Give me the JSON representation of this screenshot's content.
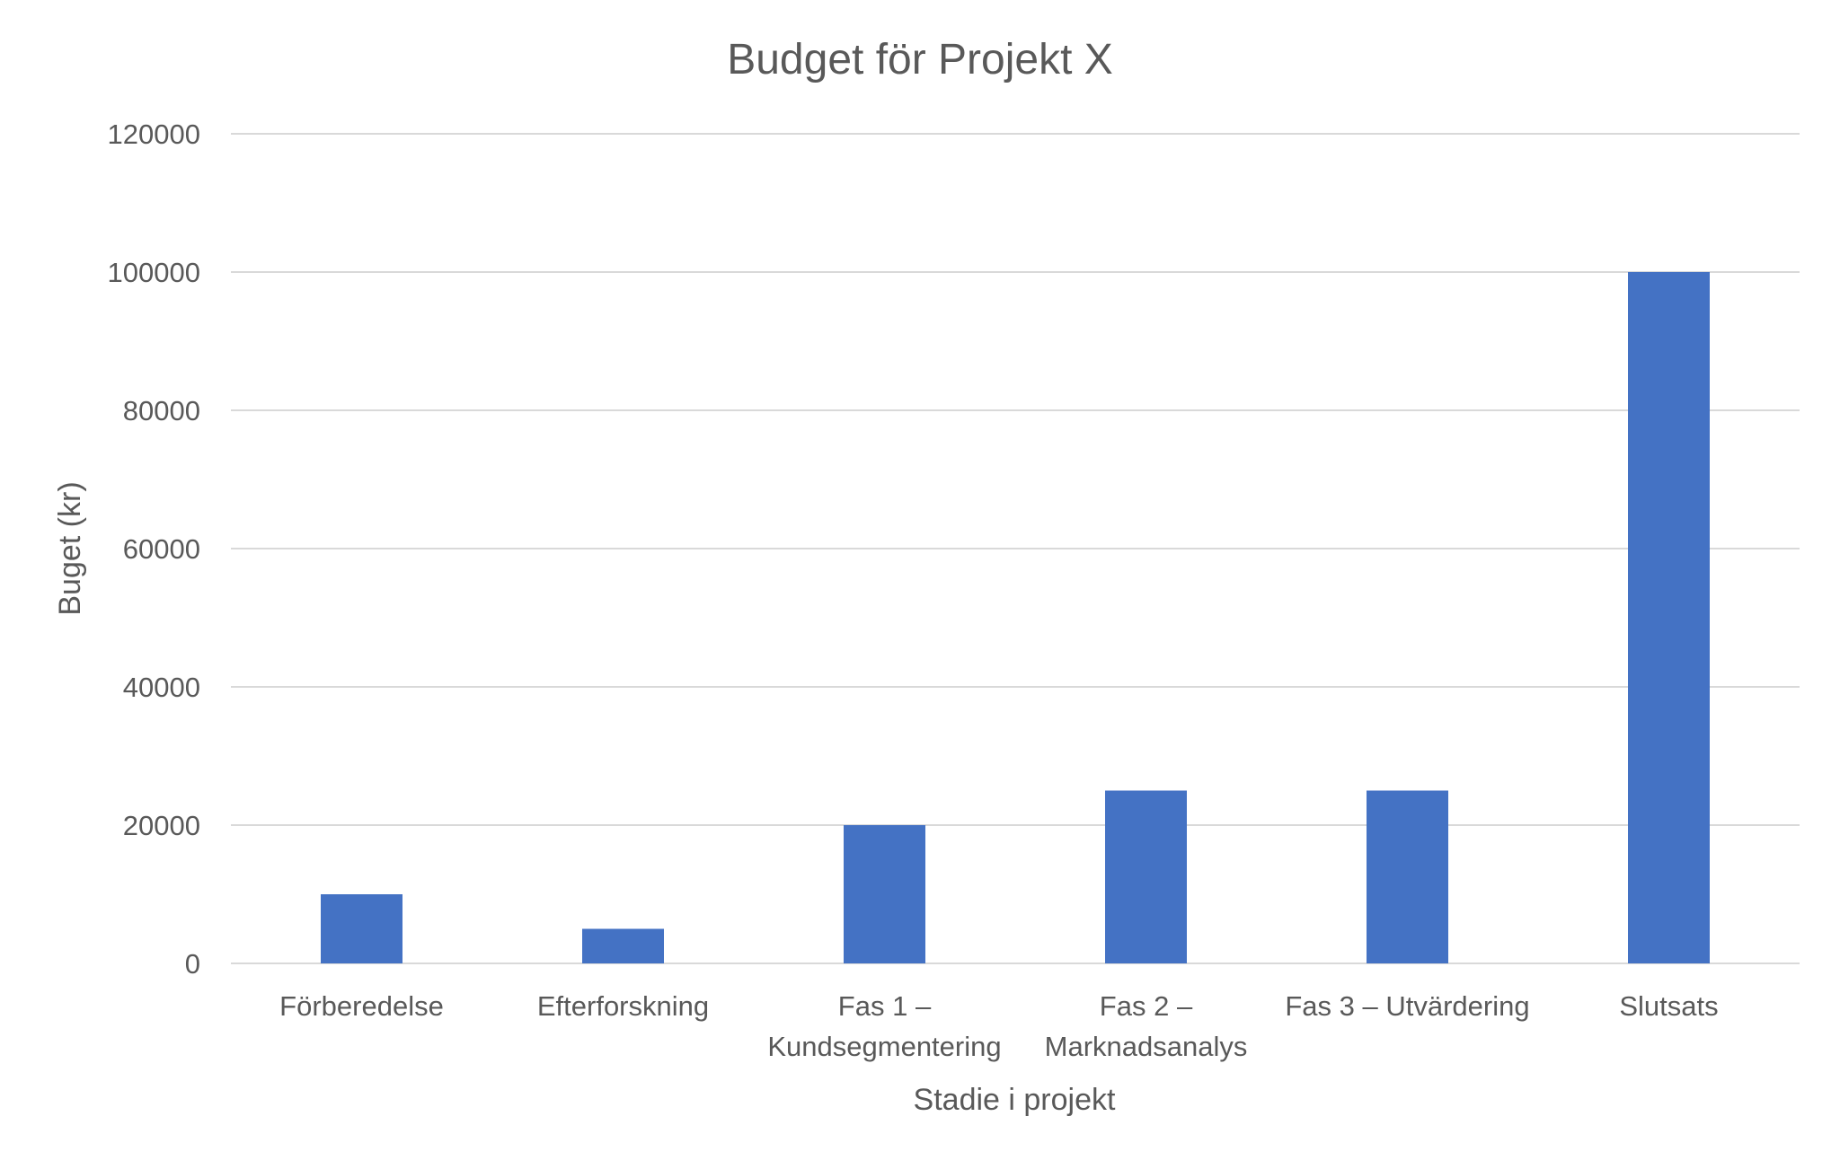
{
  "chart_data": {
    "type": "bar",
    "title": "Budget för Projekt X",
    "xlabel": "Stadie i projekt",
    "ylabel": "Buget (kr)",
    "categories": [
      [
        "Förberedelse"
      ],
      [
        "Efterforskning"
      ],
      [
        "Fas 1 –",
        "Kundsegmentering"
      ],
      [
        "Fas 2 –",
        "Marknadsanalys"
      ],
      [
        "Fas 3 – Utvärdering"
      ],
      [
        "Slutsats"
      ]
    ],
    "values": [
      10000,
      5000,
      20000,
      25000,
      25000,
      100000
    ],
    "ylim": [
      0,
      120000
    ],
    "yticks": [
      0,
      20000,
      40000,
      60000,
      80000,
      100000,
      120000
    ],
    "ytick_labels": [
      "0",
      "20000",
      "40000",
      "60000",
      "80000",
      "100000",
      "120000"
    ],
    "grid": true,
    "bar_color": "#4472c4",
    "legend": "none"
  }
}
